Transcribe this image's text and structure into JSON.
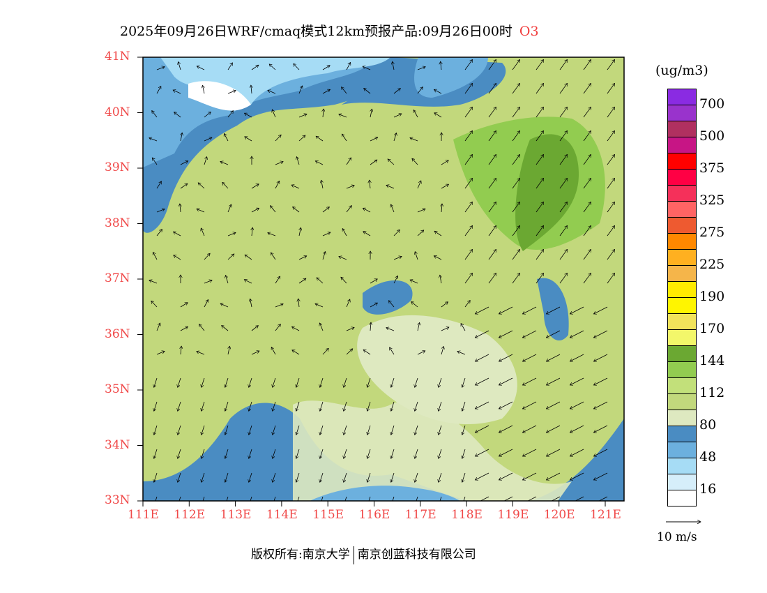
{
  "title": {
    "main": "2025年09月26日WRF/cmaq模式12km预报产品:09月26日00时",
    "species": "O3"
  },
  "lat_labels": [
    "41N",
    "40N",
    "39N",
    "38N",
    "37N",
    "36N",
    "35N",
    "34N",
    "33N"
  ],
  "lon_labels": [
    "111E",
    "112E",
    "113E",
    "114E",
    "115E",
    "116E",
    "117E",
    "118E",
    "119E",
    "120E",
    "121E"
  ],
  "colorbar": {
    "unit": "(ug/m3)",
    "labels": [
      "700",
      "500",
      "375",
      "325",
      "275",
      "225",
      "190",
      "170",
      "144",
      "112",
      "80",
      "48",
      "16"
    ],
    "colors": [
      "#8A2BE2",
      "#9933CC",
      "#B03060",
      "#C71585",
      "#FF0000",
      "#FF0044",
      "#F5305A",
      "#FF6464",
      "#EE5A30",
      "#FF8800",
      "#FFB020",
      "#F5B54A",
      "#FFEB00",
      "#FFF500",
      "#F2E35A",
      "#F3F76A",
      "#6BA832",
      "#92CC50",
      "#C2E07A",
      "#C2D87C",
      "#DEE9C0",
      "#4A8CC2",
      "#6CB0DE",
      "#A6DCF5",
      "#D6EEFA",
      "#FFFFFF"
    ]
  },
  "wind_legend": "10 m/s",
  "footer": {
    "left": "版权所有:南京大学",
    "right": "南京创蓝科技有限公司"
  }
}
